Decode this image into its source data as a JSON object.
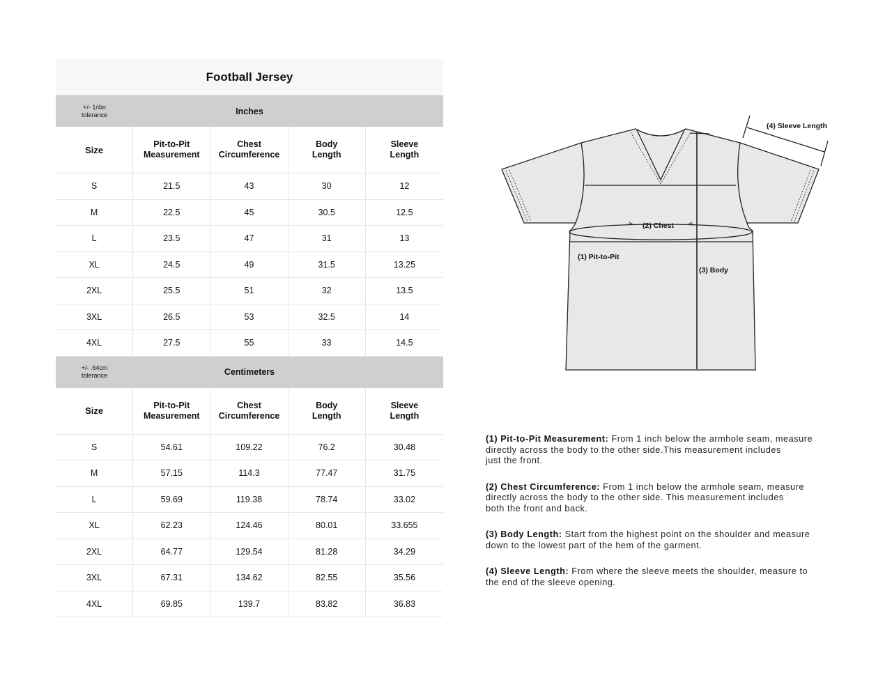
{
  "title": "Football Jersey",
  "tables": [
    {
      "tolerance": [
        "+/- 1/4in",
        "tolerance"
      ],
      "unit": "Inches",
      "headers": [
        [
          "Size"
        ],
        [
          "Pit-to-Pit",
          "Measurement"
        ],
        [
          "Chest",
          "Circumference"
        ],
        [
          "Body",
          "Length"
        ],
        [
          "Sleeve",
          "Length"
        ]
      ],
      "rows": [
        [
          "S",
          "21.5",
          "43",
          "30",
          "12"
        ],
        [
          "M",
          "22.5",
          "45",
          "30.5",
          "12.5"
        ],
        [
          "L",
          "23.5",
          "47",
          "31",
          "13"
        ],
        [
          "XL",
          "24.5",
          "49",
          "31.5",
          "13.25"
        ],
        [
          "2XL",
          "25.5",
          "51",
          "32",
          "13.5"
        ],
        [
          "3XL",
          "26.5",
          "53",
          "32.5",
          "14"
        ],
        [
          "4XL",
          "27.5",
          "55",
          "33",
          "14.5"
        ]
      ]
    },
    {
      "tolerance": [
        "+/- .64cm",
        "tolerance"
      ],
      "unit": "Centimeters",
      "headers": [
        [
          "Size"
        ],
        [
          "Pit-to-Pit",
          "Measurement"
        ],
        [
          "Chest",
          "Circumference"
        ],
        [
          "Body",
          "Length"
        ],
        [
          "Sleeve",
          "Length"
        ]
      ],
      "rows": [
        [
          "S",
          "54.61",
          "109.22",
          "76.2",
          "30.48"
        ],
        [
          "M",
          "57.15",
          "114.3",
          "77.47",
          "31.75"
        ],
        [
          "L",
          "59.69",
          "119.38",
          "78.74",
          "33.02"
        ],
        [
          "XL",
          "62.23",
          "124.46",
          "80.01",
          "33.655"
        ],
        [
          "2XL",
          "64.77",
          "129.54",
          "81.28",
          "34.29"
        ],
        [
          "3XL",
          "67.31",
          "134.62",
          "82.55",
          "35.56"
        ],
        [
          "4XL",
          "69.85",
          "139.7",
          "83.82",
          "36.83"
        ]
      ]
    }
  ],
  "diagram": {
    "sleeve": "(4) Sleeve Length",
    "chest": "(2) Chest",
    "pit": "(1) Pit-to-Pit",
    "body": "(3) Body"
  },
  "descriptions": [
    {
      "label": "(1) Pit-to-Pit Measurement:",
      "lines": [
        " From 1 inch below the armhole seam, measure",
        "directly across the body to the other side.This measurement includes",
        "just the front."
      ]
    },
    {
      "label": "(2) Chest Circumference:",
      "lines": [
        " From 1 inch below the armhole seam, measure",
        "directly across the body to the other side. This measurement includes",
        "both the front and back."
      ]
    },
    {
      "label": "(3) Body Length:",
      "lines": [
        " Start from the highest point on the shoulder and measure",
        "down to the lowest part of the hem of the garment."
      ]
    },
    {
      "label": "(4) Sleeve Length:",
      "lines": [
        " From where the sleeve meets the shoulder, measure to",
        "the end of the sleeve opening."
      ]
    }
  ]
}
